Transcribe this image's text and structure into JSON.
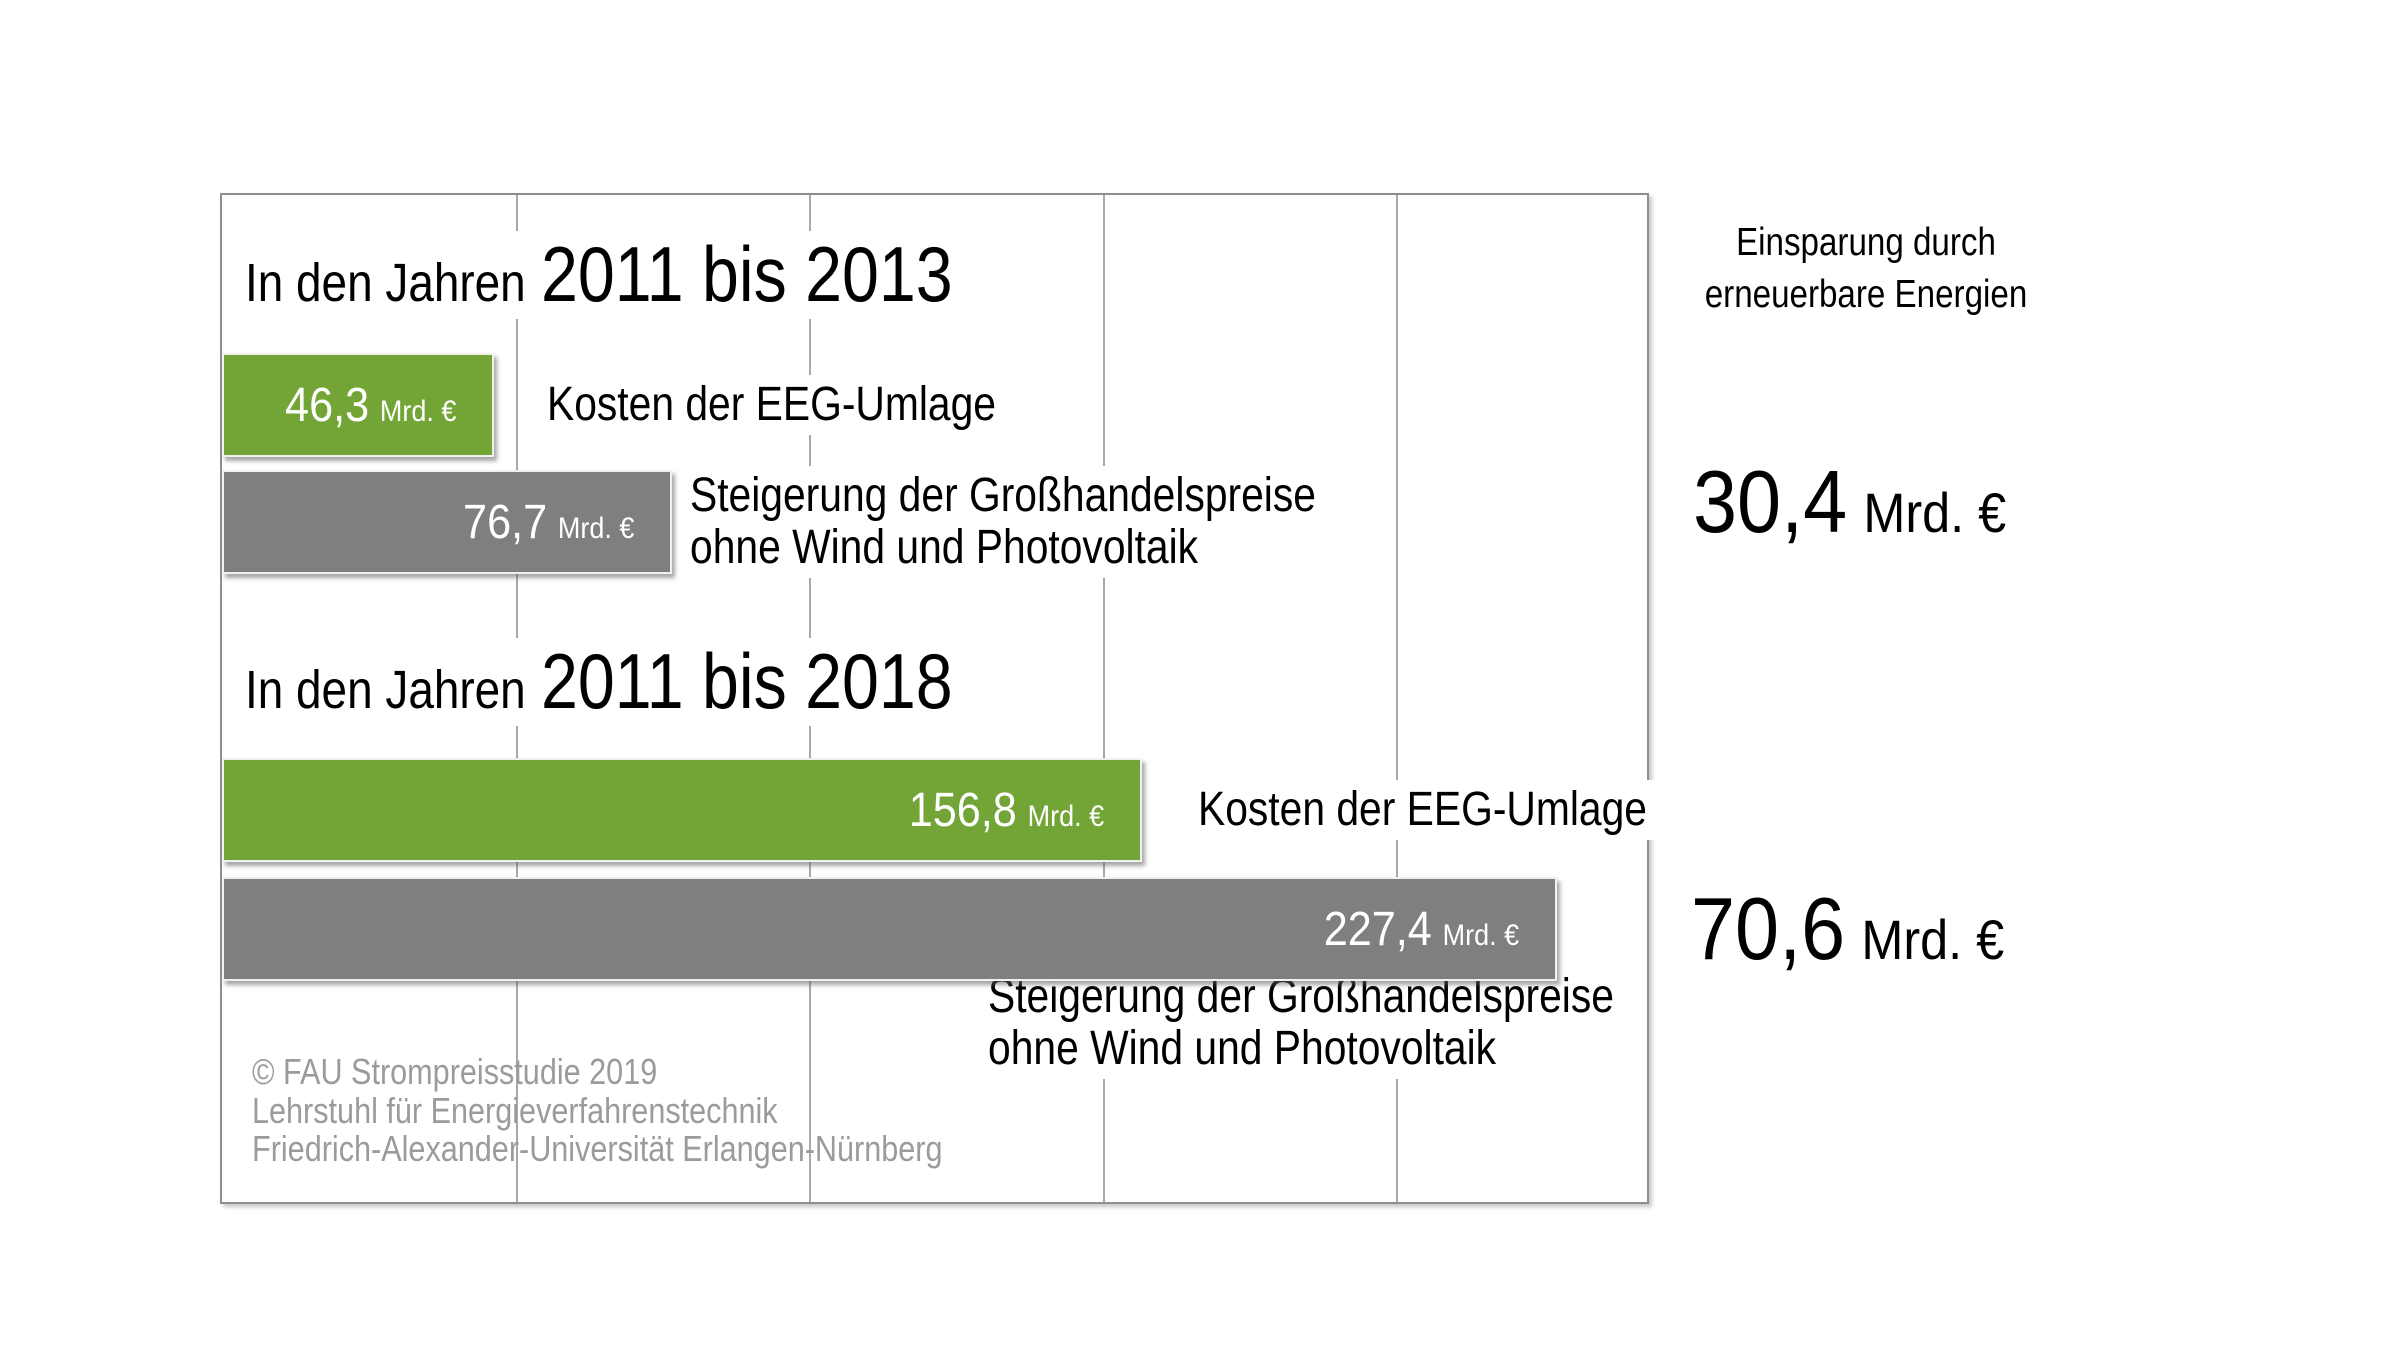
{
  "chart": {
    "title_prefix": "In den Jahren",
    "right_header_lines": [
      "Einsparung durch",
      "erneuerbare Energien"
    ],
    "footer_lines": [
      "© FAU Strompreisstudie 2019",
      "Lehrstuhl für Energieverfahrenstechnik",
      "Friedrich-Alexander-Universität Erlangen-Nürnberg"
    ]
  },
  "chart_data": {
    "type": "bar",
    "orientation": "horizontal",
    "unit": "Mrd. €",
    "value_axis": {
      "min": 0,
      "max": 245,
      "gridline_interval": 50,
      "gridlines": [
        50,
        100,
        150,
        200
      ],
      "tick_labels_visible": false,
      "grid": true
    },
    "legend_position": "none",
    "colors": {
      "eeg_umlage": "#72A535",
      "grosshandelspreise": "#7F7F7F",
      "bar_value_text": "#ffffff",
      "footer_text": "#9b9b9b"
    },
    "groups": [
      {
        "period": "2011 bis 2013",
        "series": [
          {
            "name": "Kosten der EEG-Umlage",
            "value": 46.3,
            "label_lines": [
              "Kosten der EEG-Umlage"
            ],
            "color": "#72A535"
          },
          {
            "name": "Steigerung der Großhandelspreise ohne Wind und Photovoltaik",
            "value": 76.7,
            "label_lines": [
              "Steigerung der Großhandelspreise",
              "ohne Wind und Photovoltaik"
            ],
            "color": "#7F7F7F"
          }
        ],
        "einsparung_durch_erneuerbare_energien": 30.4
      },
      {
        "period": "2011 bis 2018",
        "series": [
          {
            "name": "Kosten der EEG-Umlage",
            "value": 156.8,
            "label_lines": [
              "Kosten der EEG-Umlage"
            ],
            "color": "#72A535"
          },
          {
            "name": "Steigerung der Großhandelspreise ohne Wind und Photovoltaik",
            "value": 227.4,
            "label_lines": [
              "Steigerung der Großhandelspreise",
              "ohne Wind und Photovoltaik"
            ],
            "color": "#7F7F7F"
          }
        ],
        "einsparung_durch_erneuerbare_energien": 70.6
      }
    ]
  }
}
